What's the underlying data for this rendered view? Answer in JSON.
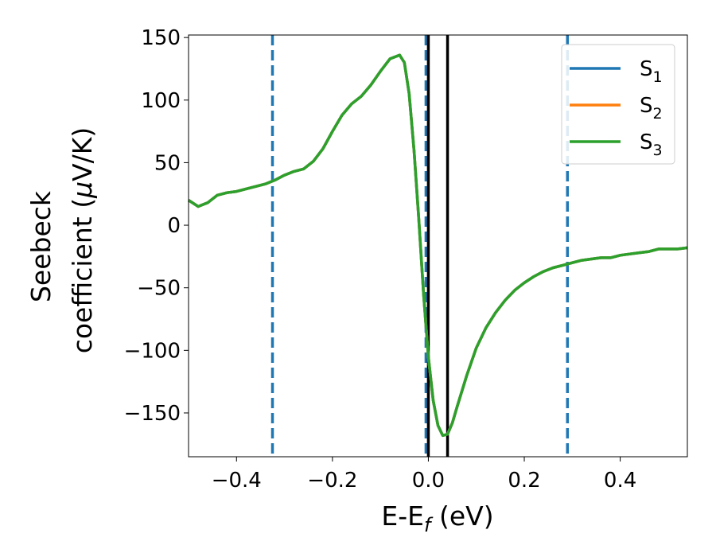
{
  "chart_data": {
    "type": "line",
    "xlabel": {
      "main": "E-E",
      "sub": "f",
      "unit": " (eV)"
    },
    "ylabel": {
      "line1": "Seebeck",
      "line2": "coefficient  (",
      "mu": "μ",
      "unit": "V/K)"
    },
    "xlim": [
      -0.5,
      0.54
    ],
    "ylim": [
      -185,
      152
    ],
    "xticks": [
      -0.4,
      -0.2,
      0.0,
      0.2,
      0.4
    ],
    "xtick_labels": [
      "−0.4",
      "−0.2",
      "0.0",
      "0.2",
      "0.4"
    ],
    "yticks": [
      150,
      100,
      50,
      0,
      -50,
      -100,
      -150
    ],
    "ytick_labels": [
      "150",
      "100",
      "50",
      "0",
      "−50",
      "−100",
      "−150"
    ],
    "grid": false,
    "legend_position": "top-right",
    "x": [
      -0.5,
      -0.48,
      -0.46,
      -0.44,
      -0.42,
      -0.4,
      -0.38,
      -0.36,
      -0.34,
      -0.32,
      -0.3,
      -0.28,
      -0.26,
      -0.24,
      -0.22,
      -0.2,
      -0.18,
      -0.16,
      -0.14,
      -0.12,
      -0.1,
      -0.08,
      -0.06,
      -0.05,
      -0.04,
      -0.03,
      -0.02,
      -0.01,
      0.0,
      0.01,
      0.02,
      0.03,
      0.04,
      0.05,
      0.06,
      0.08,
      0.1,
      0.12,
      0.14,
      0.16,
      0.18,
      0.2,
      0.22,
      0.24,
      0.26,
      0.28,
      0.3,
      0.32,
      0.34,
      0.36,
      0.38,
      0.4,
      0.42,
      0.44,
      0.46,
      0.48,
      0.5,
      0.52,
      0.54
    ],
    "series": [
      {
        "name": "S",
        "sub": "1",
        "color": "#1f77b4",
        "values": [
          20,
          15,
          18,
          24,
          26,
          27,
          29,
          31,
          33,
          36,
          40,
          43,
          45,
          51,
          61,
          75,
          88,
          97,
          103,
          112,
          123,
          133,
          136,
          130,
          105,
          60,
          5,
          -55,
          -105,
          -140,
          -160,
          -168,
          -167,
          -158,
          -145,
          -120,
          -98,
          -82,
          -70,
          -60,
          -52,
          -46,
          -41,
          -37,
          -34,
          -32,
          -30,
          -28,
          -27,
          -26,
          -26,
          -24,
          -23,
          -22,
          -21,
          -19,
          -19,
          -19,
          -18
        ]
      },
      {
        "name": "S",
        "sub": "2",
        "color": "#ff7f0e",
        "values": [
          20,
          15,
          18,
          24,
          26,
          27,
          29,
          31,
          33,
          36,
          40,
          43,
          45,
          51,
          61,
          75,
          88,
          97,
          103,
          112,
          123,
          133,
          136,
          130,
          105,
          60,
          5,
          -55,
          -105,
          -140,
          -160,
          -168,
          -167,
          -158,
          -145,
          -120,
          -98,
          -82,
          -70,
          -60,
          -52,
          -46,
          -41,
          -37,
          -34,
          -32,
          -30,
          -28,
          -27,
          -26,
          -26,
          -24,
          -23,
          -22,
          -21,
          -19,
          -19,
          -19,
          -18
        ]
      },
      {
        "name": "S",
        "sub": "3",
        "color": "#2ca02c",
        "values": [
          20,
          15,
          18,
          24,
          26,
          27,
          29,
          31,
          33,
          36,
          40,
          43,
          45,
          51,
          61,
          75,
          88,
          97,
          103,
          112,
          123,
          133,
          136,
          130,
          105,
          60,
          5,
          -55,
          -105,
          -140,
          -160,
          -168,
          -167,
          -158,
          -145,
          -120,
          -98,
          -82,
          -70,
          -60,
          -52,
          -46,
          -41,
          -37,
          -34,
          -32,
          -30,
          -28,
          -27,
          -26,
          -26,
          -24,
          -23,
          -22,
          -21,
          -19,
          -19,
          -19,
          -18
        ]
      }
    ],
    "vlines_dashed": {
      "color": "#1f77b4",
      "x": [
        -0.325,
        -0.005,
        0.29
      ]
    },
    "vlines_solid": {
      "color": "#000000",
      "x": [
        0.0,
        0.04
      ]
    }
  }
}
